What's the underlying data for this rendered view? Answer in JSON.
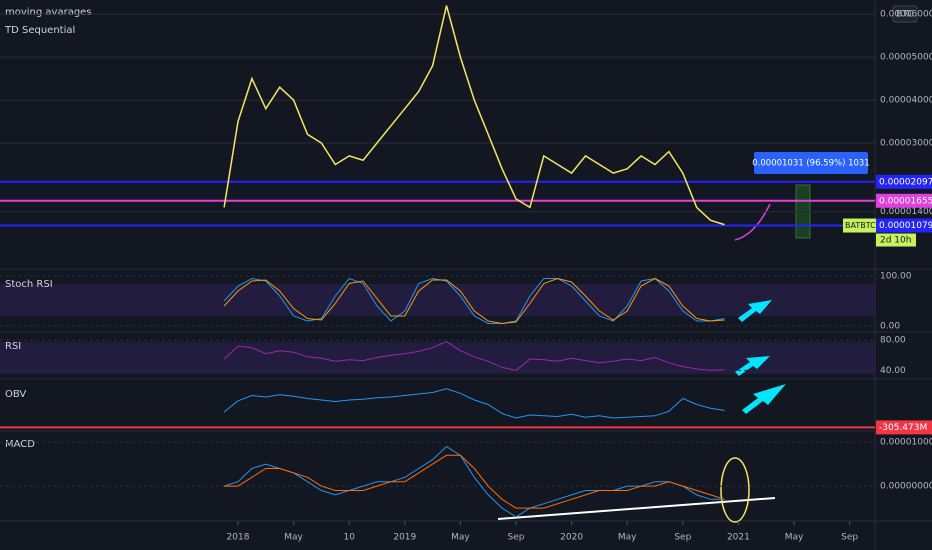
{
  "chart_data": [
    {
      "type": "line",
      "legend": [
        "moving avarages",
        "TD Sequential"
      ],
      "symbol": "BATBTC",
      "countdown": "2d 10h",
      "currency": "BTC",
      "measure": "0.00001031 (96.59%) 1031",
      "x": [
        "2017-12",
        "2018-01",
        "2018-02",
        "2018-03",
        "2018-04",
        "2018-05",
        "2018-06",
        "2018-07",
        "2018-08",
        "2018-09",
        "2018-10",
        "2018-11",
        "2018-12",
        "2019-01",
        "2019-02",
        "2019-03",
        "2019-04",
        "2019-05",
        "2019-06",
        "2019-07",
        "2019-08",
        "2019-09",
        "2019-10",
        "2019-11",
        "2019-12",
        "2020-01",
        "2020-02",
        "2020-03",
        "2020-04",
        "2020-05",
        "2020-06",
        "2020-07",
        "2020-08",
        "2020-09",
        "2020-10",
        "2020-11",
        "2020-12"
      ],
      "xticks": [
        {
          "value": "2018-01",
          "label": "2018"
        },
        {
          "value": "2018-05",
          "label": "May"
        },
        {
          "value": "2018-09",
          "label": "10"
        },
        {
          "value": "2019-01",
          "label": "2019"
        },
        {
          "value": "2019-05",
          "label": "May"
        },
        {
          "value": "2019-09",
          "label": "Sep"
        },
        {
          "value": "2020-01",
          "label": "2020"
        },
        {
          "value": "2020-05",
          "label": "May"
        },
        {
          "value": "2020-09",
          "label": "Sep"
        },
        {
          "value": "2021-01",
          "label": "2021"
        },
        {
          "value": "2021-05",
          "label": "May"
        },
        {
          "value": "2021-09",
          "label": "Sep"
        }
      ],
      "series": [
        {
          "color": "#f5e663",
          "values": [
            1.5e-05,
            3.5e-05,
            4.5e-05,
            3.8e-05,
            4.3e-05,
            4e-05,
            3.2e-05,
            3e-05,
            2.5e-05,
            2.7e-05,
            2.6e-05,
            3e-05,
            3.4e-05,
            3.8e-05,
            4.2e-05,
            4.8e-05,
            6.2e-05,
            5e-05,
            4e-05,
            3.2e-05,
            2.4e-05,
            1.7e-05,
            1.5e-05,
            2.7e-05,
            2.5e-05,
            2.3e-05,
            2.7e-05,
            2.5e-05,
            2.3e-05,
            2.4e-05,
            2.7e-05,
            2.5e-05,
            2.8e-05,
            2.3e-05,
            1.5e-05,
            1.2e-05,
            1.1e-05
          ]
        }
      ],
      "ylim": [
        9e-07,
        6.33e-05
      ],
      "yticks": [
        {
          "value": 6e-05,
          "label": "0.00006000"
        },
        {
          "value": 5e-05,
          "label": "0.00005000"
        },
        {
          "value": 4e-05,
          "label": "0.00004000"
        },
        {
          "value": 3e-05,
          "label": "0.00003000"
        },
        {
          "value": 1.4e-05,
          "label": "0.00001400"
        }
      ],
      "hlines": [
        {
          "value": 2.097e-05,
          "color": "#2424ff"
        },
        {
          "value": 1.655e-05,
          "color": "#e040e0"
        },
        {
          "value": 1.079e-05,
          "color": "#2424ff"
        }
      ]
    },
    {
      "type": "line",
      "title": "Stoch RSI",
      "ylim": [
        -8,
        108
      ],
      "yticks": [
        {
          "value": 100,
          "label": "100.00"
        },
        {
          "value": 0,
          "label": "0.00"
        }
      ],
      "series": [
        {
          "color": "#2196f3",
          "values": [
            50,
            80,
            95,
            90,
            60,
            20,
            10,
            15,
            60,
            95,
            85,
            40,
            10,
            30,
            85,
            95,
            90,
            60,
            20,
            5,
            5,
            10,
            60,
            95,
            95,
            80,
            50,
            20,
            10,
            40,
            90,
            95,
            70,
            30,
            10,
            10,
            15
          ]
        },
        {
          "color": "#ff9800",
          "values": [
            40,
            70,
            90,
            92,
            70,
            35,
            15,
            12,
            45,
            85,
            90,
            55,
            20,
            20,
            70,
            92,
            92,
            70,
            30,
            10,
            5,
            8,
            45,
            85,
            95,
            88,
            60,
            30,
            12,
            30,
            80,
            95,
            80,
            40,
            15,
            10,
            12
          ]
        }
      ]
    },
    {
      "type": "line",
      "title": "RSI",
      "ylim": [
        30,
        88
      ],
      "yticks": [
        {
          "value": 80,
          "label": "80.00"
        },
        {
          "value": 40,
          "label": "40.00"
        }
      ],
      "series": [
        {
          "color": "#9c27b0",
          "values": [
            55,
            72,
            70,
            62,
            66,
            64,
            58,
            56,
            52,
            54,
            53,
            57,
            60,
            62,
            65,
            70,
            78,
            66,
            58,
            52,
            44,
            40,
            55,
            54,
            52,
            56,
            53,
            50,
            52,
            55,
            53,
            57,
            50,
            45,
            42,
            40,
            41
          ]
        }
      ]
    },
    {
      "type": "line",
      "title": "OBV",
      "ylim": [
        -340,
        300
      ],
      "yticks": [],
      "series": [
        {
          "color": "#2196f3",
          "values": [
            -100,
            50,
            120,
            100,
            130,
            110,
            80,
            60,
            40,
            60,
            70,
            90,
            100,
            120,
            140,
            160,
            210,
            150,
            60,
            0,
            -120,
            -180,
            -140,
            -150,
            -160,
            -130,
            -170,
            -150,
            -180,
            -170,
            -160,
            -150,
            -90,
            80,
            0,
            -50,
            -80
          ]
        }
      ],
      "hlines": [
        {
          "value": -305.473,
          "label": "-305.473M",
          "color": "#f23645"
        }
      ]
    },
    {
      "type": "line",
      "title": "MACD",
      "ylim": [
        -7.7e-06,
        1.23e-05
      ],
      "yticks": [
        {
          "value": 1e-05,
          "label": "0.00001000"
        },
        {
          "value": 0,
          "label": "0.00000000"
        }
      ],
      "series": [
        {
          "color": "#2196f3",
          "values": [
            0,
            1e-06,
            4e-06,
            5e-06,
            4e-06,
            3e-06,
            1e-06,
            -1e-06,
            -2e-06,
            -1e-06,
            0,
            1e-06,
            1e-06,
            2e-06,
            4e-06,
            6e-06,
            9e-06,
            7e-06,
            2e-06,
            -2e-06,
            -5e-06,
            -7e-06,
            -5e-06,
            -4e-06,
            -3e-06,
            -2e-06,
            -1e-06,
            -1e-06,
            -1e-06,
            0,
            0,
            1e-06,
            1e-06,
            0,
            -2e-06,
            -3e-06,
            -3e-06
          ]
        },
        {
          "color": "#ff6d00",
          "values": [
            0,
            0,
            2e-06,
            4e-06,
            4e-06,
            3e-06,
            2e-06,
            0,
            -1e-06,
            -1e-06,
            -1e-06,
            0,
            1e-06,
            1e-06,
            3e-06,
            5e-06,
            7e-06,
            7e-06,
            4e-06,
            0,
            -3e-06,
            -5e-06,
            -5e-06,
            -5e-06,
            -4e-06,
            -3e-06,
            -2e-06,
            -1e-06,
            -1e-06,
            -1e-06,
            0,
            0,
            1e-06,
            0,
            -1e-06,
            -2e-06,
            -3e-06
          ]
        }
      ]
    }
  ]
}
